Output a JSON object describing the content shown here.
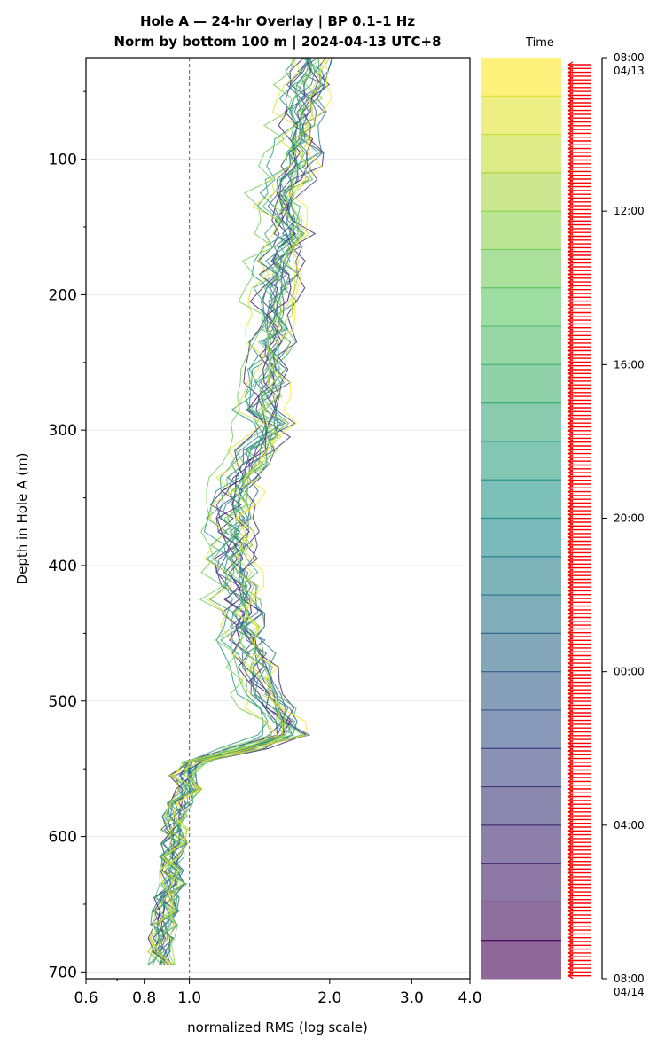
{
  "chart_data": {
    "type": "line",
    "title_line1": "Hole A — 24-hr Overlay  |  BP 0.1–1 Hz",
    "title_line2": "Norm by bottom 100 m  |  2024-04-13 UTC+8",
    "xlabel": "normalized RMS  (log scale)",
    "ylabel": "Depth in Hole A (m)",
    "x_scale": "log",
    "xlim": [
      0.6,
      4.0
    ],
    "ylim": [
      705,
      25
    ],
    "x_ticks": [
      {
        "value": 0.6,
        "label": "0.6"
      },
      {
        "value": 0.8,
        "label": "0.8"
      },
      {
        "value": 1.0,
        "label": "1.0"
      },
      {
        "value": 2.0,
        "label": "2.0"
      },
      {
        "value": 3.0,
        "label": "3.0"
      },
      {
        "value": 4.0,
        "label": "4.0"
      }
    ],
    "y_ticks": [
      {
        "value": 100,
        "label": "100"
      },
      {
        "value": 200,
        "label": "200"
      },
      {
        "value": 300,
        "label": "300"
      },
      {
        "value": 400,
        "label": "400"
      },
      {
        "value": 500,
        "label": "500"
      },
      {
        "value": 600,
        "label": "600"
      },
      {
        "value": 700,
        "label": "700"
      }
    ],
    "reference_line_x": 1.0,
    "grid": "horizontal",
    "depth_samples": [
      25,
      35,
      45,
      55,
      65,
      75,
      85,
      95,
      105,
      115,
      125,
      135,
      145,
      155,
      165,
      175,
      185,
      195,
      205,
      215,
      225,
      235,
      245,
      255,
      265,
      275,
      285,
      295,
      305,
      315,
      325,
      335,
      345,
      355,
      365,
      375,
      385,
      395,
      405,
      415,
      425,
      435,
      445,
      455,
      465,
      475,
      485,
      495,
      505,
      515,
      525,
      535,
      545,
      555,
      565,
      575,
      585,
      595,
      605,
      615,
      625,
      635,
      645,
      655,
      665,
      675,
      685,
      695
    ],
    "base_profile": [
      1.78,
      1.74,
      1.74,
      1.73,
      1.72,
      1.7,
      1.69,
      1.68,
      1.66,
      1.63,
      1.55,
      1.52,
      1.6,
      1.62,
      1.57,
      1.53,
      1.52,
      1.52,
      1.5,
      1.5,
      1.49,
      1.48,
      1.46,
      1.44,
      1.43,
      1.41,
      1.4,
      1.45,
      1.43,
      1.35,
      1.32,
      1.28,
      1.25,
      1.22,
      1.22,
      1.22,
      1.22,
      1.22,
      1.23,
      1.24,
      1.24,
      1.26,
      1.28,
      1.3,
      1.33,
      1.36,
      1.38,
      1.42,
      1.5,
      1.55,
      1.56,
      1.3,
      1.03,
      0.97,
      1.0,
      0.96,
      0.93,
      0.93,
      0.93,
      0.92,
      0.92,
      0.92,
      0.9,
      0.89,
      0.88,
      0.87,
      0.87,
      0.87
    ],
    "series_count": 24,
    "time_colorbar": {
      "title": "Time",
      "ticks": [
        {
          "label": "08:00\n04/13",
          "hours": 0
        },
        {
          "label": "12:00",
          "hours": 4
        },
        {
          "label": "16:00",
          "hours": 8
        },
        {
          "label": "20:00",
          "hours": 12
        },
        {
          "label": "00:00",
          "hours": 16
        },
        {
          "label": "04:00",
          "hours": 20
        },
        {
          "label": "08:00\n04/14",
          "hours": 24
        }
      ],
      "range_hours": [
        0,
        24
      ],
      "band_count": 24,
      "colormap": "viridis-reversed",
      "marker_color": "#ff0000"
    }
  }
}
